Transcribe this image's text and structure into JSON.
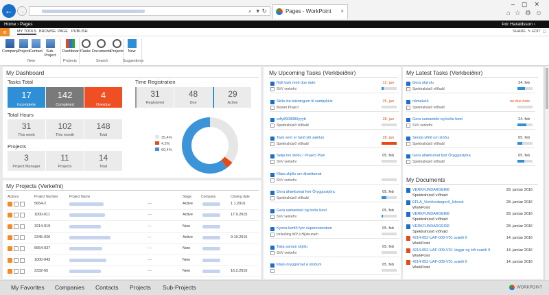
{
  "browser": {
    "tab_title": "Pages - WorkPoint",
    "tab_close": "×"
  },
  "sp": {
    "breadcrumb": "Home › Pages",
    "user": "Þór Haraldsson ›"
  },
  "ribbon": {
    "tabs": [
      "MY TOOLS",
      "BROWSE",
      "PAGE",
      "PUBLISH"
    ],
    "share": "SHARE",
    "edit": "EDIT",
    "buttons": [
      "Company",
      "Project",
      "Contact",
      "Sub-Project",
      "Dashboard",
      "Tasks",
      "Documents",
      "Projects",
      "New"
    ],
    "groups": [
      "New",
      "Projects",
      "Search",
      "Suggestions"
    ]
  },
  "dashboard": {
    "title": "My Dashboard",
    "tasks_total_label": "Tasks Total",
    "cards": [
      {
        "value": "17",
        "label": "Incomplete",
        "color": "#2f8fd6"
      },
      {
        "value": "142",
        "label": "Completed",
        "color": "#7a7a7a"
      },
      {
        "value": "4",
        "label": "Overdue",
        "color": "#f04e23"
      }
    ],
    "time_reg_label": "Time Registration",
    "time_cards": [
      {
        "value": "31",
        "label": "Registered"
      },
      {
        "value": "48",
        "label": "Due"
      },
      {
        "value": "29",
        "label": "Active"
      }
    ],
    "hours_label": "Total Hours",
    "hours": [
      {
        "value": "31",
        "label": "This week"
      },
      {
        "value": "102",
        "label": "This month"
      },
      {
        "value": "148",
        "label": "Total"
      }
    ],
    "projects_label": "Projects",
    "projects": [
      {
        "value": "3",
        "label": "Project Manager"
      },
      {
        "value": "11",
        "label": "Projects"
      },
      {
        "value": "14",
        "label": "Total"
      }
    ],
    "donut_legend": [
      {
        "label": "35,4%",
        "color": "#e6e6e6",
        "value": 35.4
      },
      {
        "label": "4,2%",
        "color": "#e64a19",
        "value": 4.2
      },
      {
        "label": "60,4%",
        "color": "#3b93d8",
        "value": 60.4
      }
    ]
  },
  "projects_table": {
    "title": "My Projects (Verkefni)",
    "headers": [
      "Actions",
      "Project Number",
      "Project Name",
      "Stage",
      "Company",
      "Closing date"
    ],
    "rows": [
      {
        "number": "5654-2",
        "stage": "Active",
        "closing": "1.1.2016"
      },
      {
        "number": "1000-011",
        "stage": "Active",
        "closing": "17.9.2015"
      },
      {
        "number": "3214-019",
        "stage": "New",
        "closing": ""
      },
      {
        "number": "2345-026",
        "stage": "Active",
        "closing": "9.10.2015"
      },
      {
        "number": "5654-037",
        "stage": "New",
        "closing": ""
      },
      {
        "number": "1000-043",
        "stage": "New",
        "closing": ""
      },
      {
        "number": "2332-65",
        "stage": "New",
        "closing": "16.2.2016"
      }
    ]
  },
  "upcoming": {
    "title": "My Upcoming Tasks (Verkbeiðnir)",
    "tasks": [
      {
        "title": "Nýtt task með due date",
        "sub": "SVV verkefni",
        "date": "12. jan",
        "red": true,
        "fill": 0.15,
        "fillred": false
      },
      {
        "title": "Skila inn teikningum til samþykkis",
        "sub": "Master Project",
        "date": "25. jan",
        "red": true,
        "fill": 0,
        "fillred": false
      },
      {
        "title": "sdfy8908989yyytt",
        "sub": "Spektrahúsið víðhald",
        "date": "28. jan",
        "red": true,
        "fill": 0,
        "fillred": false
      },
      {
        "title": "Task sem er farið yfir áætlun",
        "sub": "Spektrahúsið víðhald",
        "date": "28. jan",
        "red": true,
        "fill": 1,
        "fillred": true
      },
      {
        "title": "Setja inn stöðu í Project Plan",
        "sub": "SVV verkefni",
        "date": "05. feb",
        "red": false,
        "fill": 0,
        "fillred": false
      },
      {
        "title": "Klára skjölu um áhættumat",
        "sub": "SVV verkefni",
        "date": "",
        "red": false,
        "fill": 0,
        "fillred": false
      },
      {
        "title": "Gera áhættumat fyrir Öryggisstjóra",
        "sub": "Spektrahúsið víðhald",
        "date": "05. feb",
        "red": false,
        "fill": 0.3,
        "fillred": false
      },
      {
        "title": "Gera samantekt og boða fund",
        "sub": "SVV verkefni",
        "date": "05. feb",
        "red": false,
        "fill": 0.1,
        "fillred": false
      },
      {
        "title": "Kynna kerfið fyrir súpernotendum",
        "sub": "Innleiðing WP á Hjúkrunarh",
        "date": "05. feb",
        "red": false,
        "fill": 0,
        "fillred": false
      },
      {
        "title": "Taka saman skjölu",
        "sub": "SVV verkefni",
        "date": "05. feb",
        "red": false,
        "fill": 0,
        "fillred": false
      },
      {
        "title": "Klára öryggismat á stoðum",
        "sub": "",
        "date": "05. feb",
        "red": false,
        "fill": 0,
        "fillred": false
      }
    ]
  },
  "latest": {
    "title": "My Latest Tasks (Verkbeiðnir)",
    "tasks": [
      {
        "title": "Gera skýrslu",
        "sub": "Spektrahúsið víðhald",
        "date": "24. feb",
        "red": false,
        "fill": 0.5,
        "fillred": false
      },
      {
        "title": "námskeið",
        "sub": "Spektrahúsið víðhald",
        "date": "no due date",
        "red": true,
        "fill": 0,
        "fillred": false
      },
      {
        "title": "Gera samantekt og boða fund",
        "sub": "SVV verkefni",
        "date": "24. feb",
        "red": false,
        "fill": 0.6,
        "fillred": false
      },
      {
        "title": "Senda yfirlit um stöðu",
        "sub": "Spektrahúsið víðhald",
        "date": "05. feb",
        "red": false,
        "fill": 0.3,
        "fillred": false
      },
      {
        "title": "Gera áhættumat fyrir Öryggisstjóra",
        "sub": "Spektrahúsið víðhald",
        "date": "05. feb",
        "red": false,
        "fill": 0.45,
        "fillred": false
      }
    ]
  },
  "documents": {
    "title": "My Documents",
    "docs": [
      {
        "title": "VERKFUNDARGERÐ",
        "sub": "Spektrahúsið víðhald",
        "date": "28. janúar 2016",
        "pdf": false
      },
      {
        "title": "EFLA_Verkfundargerð_Íslensk",
        "sub": "WorkPoint",
        "date": "28. janúar 2016",
        "pdf": false
      },
      {
        "title": "VERKFUNDARGERÐ",
        "sub": "Spektrahúsið víðhald",
        "date": "28. janúar 2016",
        "pdf": false
      },
      {
        "title": "VERKFUNDARGERÐ",
        "sub": "Spektrahúsið víðhald",
        "date": "28. janúar 2016",
        "pdf": false
      },
      {
        "title": "4214-052-UAF-009-V01 svæði II",
        "sub": "WorkPoint",
        "date": "14. janúar 2016",
        "pdf": true
      },
      {
        "title": "4214-052-UAF-009-V01 Veggir og loft svæði II",
        "sub": "WorkPoint",
        "date": "14. janúar 2016",
        "pdf": true
      },
      {
        "title": "4214-052-UAF-009-V01 svæði II",
        "sub": "WorkPoint",
        "date": "14. janúar 2016",
        "pdf": true
      }
    ]
  },
  "footer": {
    "items": [
      "My Favorites",
      "Companies",
      "Contacts",
      "Projects",
      "Sub-Projects"
    ],
    "brand": "WORKPOINT"
  }
}
